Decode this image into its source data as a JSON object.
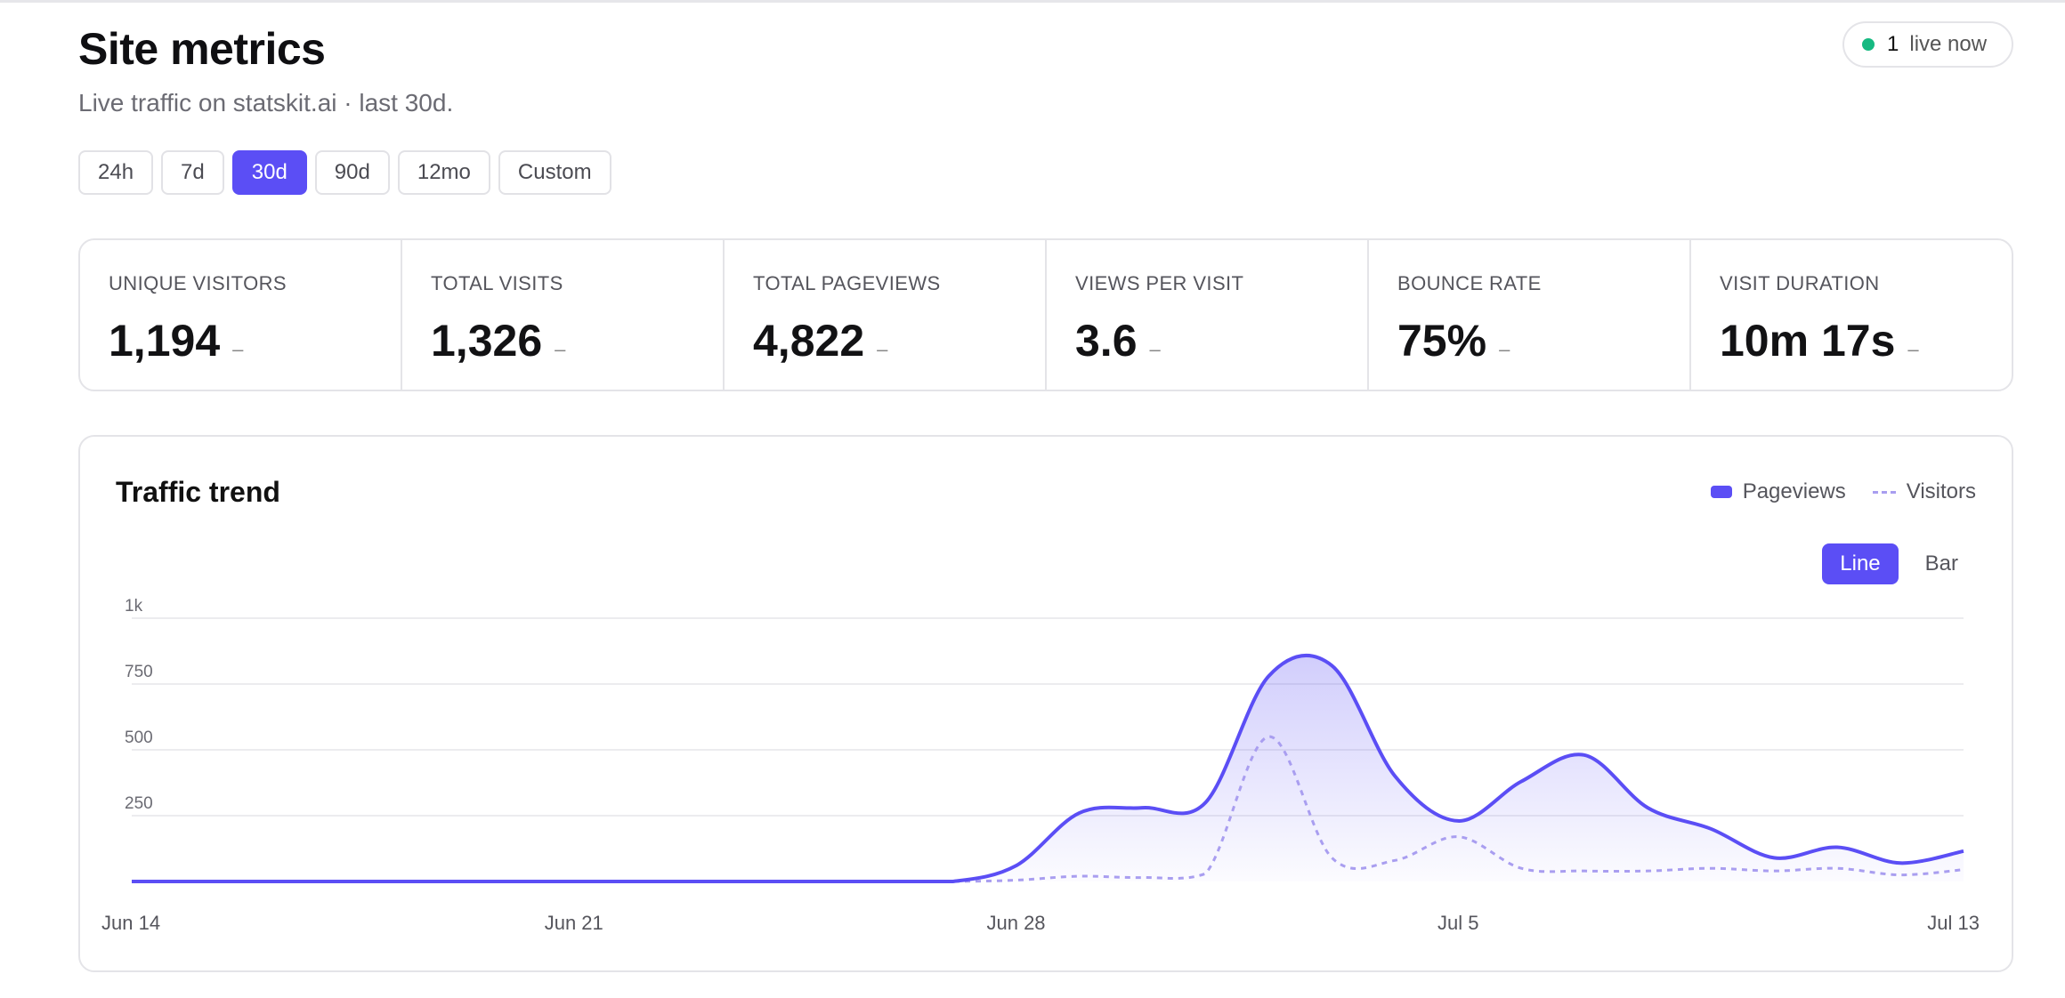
{
  "header": {
    "title": "Site metrics",
    "subtitle": "Live traffic on statskit.ai · last 30d.",
    "live_count": "1",
    "live_label": "live now"
  },
  "ranges": [
    {
      "label": "24h",
      "active": false
    },
    {
      "label": "7d",
      "active": false
    },
    {
      "label": "30d",
      "active": true
    },
    {
      "label": "90d",
      "active": false
    },
    {
      "label": "12mo",
      "active": false
    },
    {
      "label": "Custom",
      "active": false
    }
  ],
  "stats": [
    {
      "label": "UNIQUE VISITORS",
      "value": "1,194",
      "delta": "–"
    },
    {
      "label": "TOTAL VISITS",
      "value": "1,326",
      "delta": "–"
    },
    {
      "label": "TOTAL PAGEVIEWS",
      "value": "4,822",
      "delta": "–"
    },
    {
      "label": "VIEWS PER VISIT",
      "value": "3.6",
      "delta": "–"
    },
    {
      "label": "BOUNCE RATE",
      "value": "75%",
      "delta": "–"
    },
    {
      "label": "VISIT DURATION",
      "value": "10m 17s",
      "delta": "–"
    }
  ],
  "chart": {
    "title": "Traffic trend",
    "legend": [
      "Pageviews",
      "Visitors"
    ],
    "toggle": [
      {
        "label": "Line",
        "active": true
      },
      {
        "label": "Bar",
        "active": false
      }
    ]
  },
  "colors": {
    "accent": "#5b4ef5",
    "visitors": "#a99ef0",
    "live_dot": "#16b981"
  },
  "chart_data": {
    "type": "area",
    "title": "Traffic trend",
    "x": [
      "Jun 14",
      "Jun 15",
      "Jun 16",
      "Jun 17",
      "Jun 18",
      "Jun 19",
      "Jun 20",
      "Jun 21",
      "Jun 22",
      "Jun 23",
      "Jun 24",
      "Jun 25",
      "Jun 26",
      "Jun 27",
      "Jun 28",
      "Jun 29",
      "Jun 30",
      "Jul 1",
      "Jul 2",
      "Jul 3",
      "Jul 4",
      "Jul 5",
      "Jul 6",
      "Jul 7",
      "Jul 8",
      "Jul 9",
      "Jul 10",
      "Jul 11",
      "Jul 12",
      "Jul 13"
    ],
    "x_tick_labels": [
      "Jun 14",
      "Jun 21",
      "Jun 28",
      "Jul 5",
      "Jul 13"
    ],
    "y_tick_labels": [
      "1k",
      "750",
      "500",
      "250"
    ],
    "ylim": [
      0,
      1000
    ],
    "series": [
      {
        "name": "Pageviews",
        "values": [
          0,
          0,
          0,
          0,
          0,
          0,
          0,
          0,
          0,
          0,
          0,
          0,
          0,
          0,
          60,
          260,
          280,
          300,
          780,
          820,
          400,
          230,
          380,
          480,
          280,
          200,
          90,
          130,
          70,
          115
        ]
      },
      {
        "name": "Visitors",
        "values": [
          0,
          0,
          0,
          0,
          0,
          0,
          0,
          0,
          0,
          0,
          0,
          0,
          0,
          0,
          5,
          20,
          15,
          30,
          550,
          90,
          80,
          170,
          50,
          40,
          40,
          50,
          40,
          50,
          25,
          45
        ]
      }
    ],
    "legend_position": "top-right",
    "grid": true
  }
}
